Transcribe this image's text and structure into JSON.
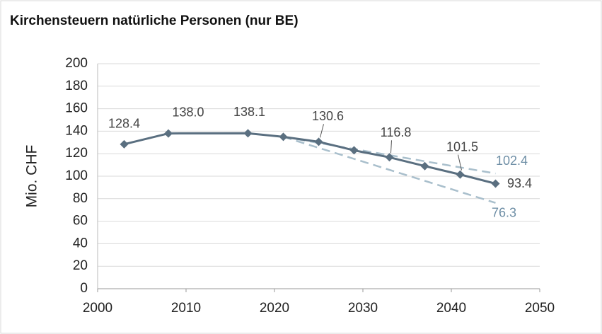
{
  "chart_data": {
    "type": "line",
    "title": "Kirchensteuern natürliche Personen (nur BE)",
    "y_label": "Mio. CHF",
    "xlim": [
      2000,
      2050
    ],
    "xticks": [
      2000,
      2010,
      2020,
      2030,
      2040,
      2050
    ],
    "ylim": [
      0,
      200
    ],
    "yticks": [
      0,
      20,
      40,
      60,
      80,
      100,
      120,
      140,
      160,
      180,
      200
    ],
    "grid": true,
    "series": [
      {
        "x": [
          2003,
          2008,
          2017,
          2021,
          2025,
          2029,
          2033,
          2037,
          2041,
          2045
        ],
        "values": [
          128.4,
          138.0,
          138.1,
          135,
          130.6,
          123,
          116.8,
          109,
          101.5,
          93.4
        ],
        "value_labels": [
          "128.4",
          "138.0",
          "138.1",
          null,
          "130.6",
          null,
          "116.8",
          null,
          "101.5",
          "93.4"
        ],
        "color": "#5a6f80",
        "marker": "diamond",
        "dash": false
      },
      {
        "x": [
          2021,
          2045
        ],
        "values": [
          135,
          102.4
        ],
        "value_labels": [
          null,
          "102.4"
        ],
        "color": "#a9bfcc",
        "marker": "none",
        "dash": true
      },
      {
        "x": [
          2021,
          2045
        ],
        "values": [
          135,
          76.3
        ],
        "value_labels": [
          null,
          "76.3"
        ],
        "color": "#a9bfcc",
        "marker": "none",
        "dash": true
      }
    ]
  }
}
